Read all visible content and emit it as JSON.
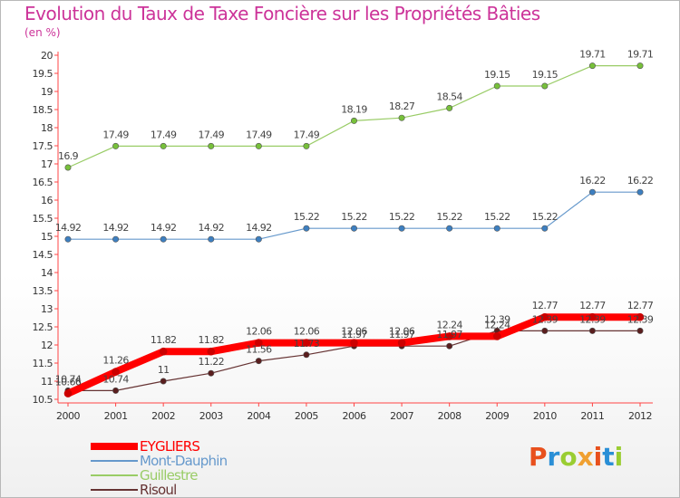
{
  "header": {
    "title": "Evolution du Taux de Taxe Foncière sur les Propriétés Bâties",
    "subtitle": "(en %)"
  },
  "brand": {
    "text": "Proxiti",
    "colors": [
      "#e8501d",
      "#2a8fd6",
      "#9acd32",
      "#f0a030",
      "#e8501d",
      "#2a8fd6",
      "#9acd32"
    ]
  },
  "chart_data": {
    "type": "line",
    "title": "Evolution du Taux de Taxe Foncière sur les Propriétés Bâties",
    "ylabel": "(en %)",
    "xlabel": "",
    "categories": [
      "2000",
      "2001",
      "2002",
      "2003",
      "2004",
      "2005",
      "2006",
      "2007",
      "2008",
      "2009",
      "2010",
      "2011",
      "2012"
    ],
    "ylim": [
      10.5,
      20
    ],
    "yticks": [
      "10.5",
      "11",
      "11.5",
      "12",
      "12.5",
      "13",
      "13.5",
      "14",
      "14.5",
      "15",
      "15.5",
      "16",
      "16.5",
      "17",
      "17.5",
      "18",
      "18.5",
      "19",
      "19.5",
      "20"
    ],
    "grid": false,
    "legend_position": "bottom-left",
    "series": [
      {
        "name": "Guillestre",
        "color": "#99cc66",
        "marker": "#77c03a",
        "values": [
          16.9,
          17.49,
          17.49,
          17.49,
          17.49,
          17.49,
          18.19,
          18.27,
          18.54,
          19.15,
          19.15,
          19.71,
          19.71
        ],
        "labels": [
          "16.9",
          "17.49",
          "17.49",
          "17.49",
          "17.49",
          "17.49",
          "18.19",
          "18.27",
          "18.54",
          "19.15",
          "19.15",
          "19.71",
          "19.71"
        ]
      },
      {
        "name": "Mont-Dauphin",
        "color": "#6699cc",
        "marker": "#3d7fc0",
        "values": [
          14.92,
          14.92,
          14.92,
          14.92,
          14.92,
          15.22,
          15.22,
          15.22,
          15.22,
          15.22,
          15.22,
          16.22,
          16.22
        ],
        "labels": [
          "14.92",
          "14.92",
          "14.92",
          "14.92",
          "14.92",
          "15.22",
          "15.22",
          "15.22",
          "15.22",
          "15.22",
          "15.22",
          "16.22",
          "16.22"
        ]
      },
      {
        "name": "Risoul",
        "color": "#663333",
        "marker": "#5a1e1e",
        "values": [
          10.74,
          10.74,
          11,
          11.22,
          11.56,
          11.73,
          11.97,
          11.97,
          11.97,
          12.39,
          12.39,
          12.39,
          12.39
        ],
        "labels": [
          "10.74",
          "10.74",
          "11",
          "11.22",
          "11.56",
          "11.73",
          "11.97",
          "11.97",
          "11.97",
          "12.39",
          "12.39",
          "12.39",
          "12.39"
        ]
      },
      {
        "name": "EYGLIERS",
        "color": "#ff0000",
        "marker": "#cc0000",
        "values": [
          10.66,
          11.26,
          11.82,
          11.82,
          12.06,
          12.06,
          12.06,
          12.06,
          12.24,
          12.24,
          12.77,
          12.77,
          12.77
        ],
        "labels": [
          "10.66",
          "11.26",
          "11.82",
          "11.82",
          "12.06",
          "12.06",
          "12.06",
          "12.06",
          "12.24",
          "12.24",
          "12.77",
          "12.77",
          "12.77"
        ]
      }
    ]
  },
  "legend": {
    "items": [
      {
        "name": "EYGLIERS",
        "color": "#ff0000",
        "thickness": 8
      },
      {
        "name": "Mont-Dauphin",
        "color": "#6699cc",
        "thickness": 2
      },
      {
        "name": "Guillestre",
        "color": "#99cc66",
        "thickness": 2
      },
      {
        "name": "Risoul",
        "color": "#663333",
        "thickness": 2
      }
    ]
  }
}
